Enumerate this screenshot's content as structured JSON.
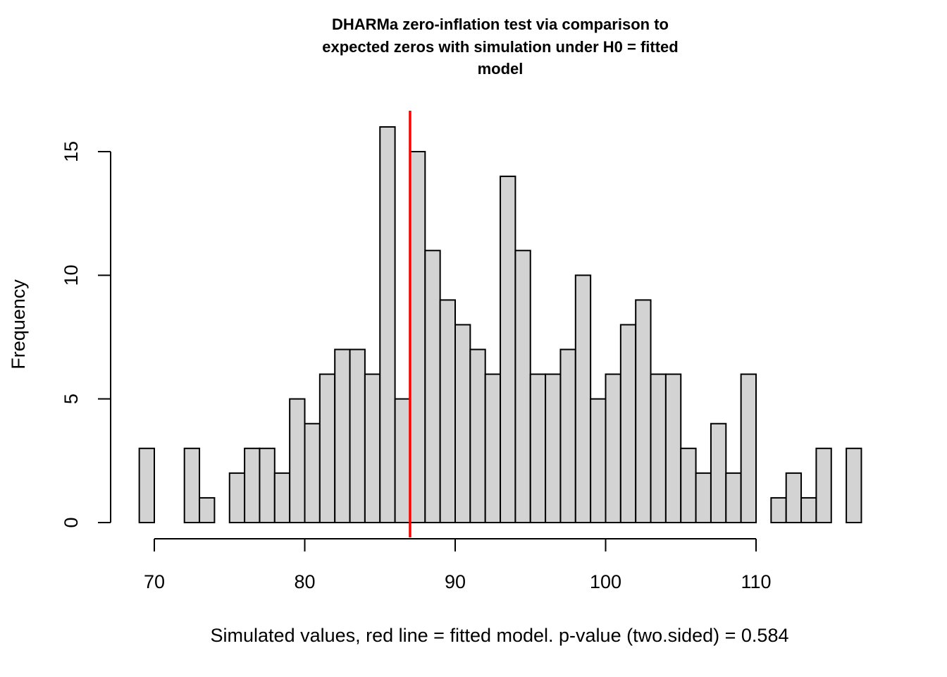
{
  "chart_data": {
    "type": "bar",
    "subtype": "histogram",
    "title_lines": [
      "DHARMa zero-inflation test via comparison to",
      "expected zeros with simulation under H0 = fitted",
      "model"
    ],
    "xlabel": "Simulated values, red line = fitted model. p-value (two.sided) = 0.584",
    "ylabel": "Frequency",
    "bin_start": 69,
    "bin_width": 1,
    "values": [
      3,
      0,
      0,
      3,
      1,
      0,
      2,
      3,
      3,
      2,
      5,
      4,
      6,
      7,
      7,
      6,
      16,
      5,
      15,
      11,
      9,
      8,
      7,
      6,
      14,
      11,
      6,
      6,
      7,
      10,
      5,
      6,
      8,
      9,
      6,
      6,
      3,
      2,
      4,
      2,
      6,
      0,
      1,
      2,
      1,
      3,
      0,
      3
    ],
    "bar_color": "#d3d3d3",
    "observed_value": 87,
    "observed_line_color": "#ff0000",
    "x_ticks": [
      70,
      80,
      90,
      100,
      110
    ],
    "y_ticks": [
      0,
      5,
      10,
      15
    ],
    "xlim": [
      69,
      117
    ],
    "ylim": [
      0,
      16
    ],
    "grid": false
  }
}
